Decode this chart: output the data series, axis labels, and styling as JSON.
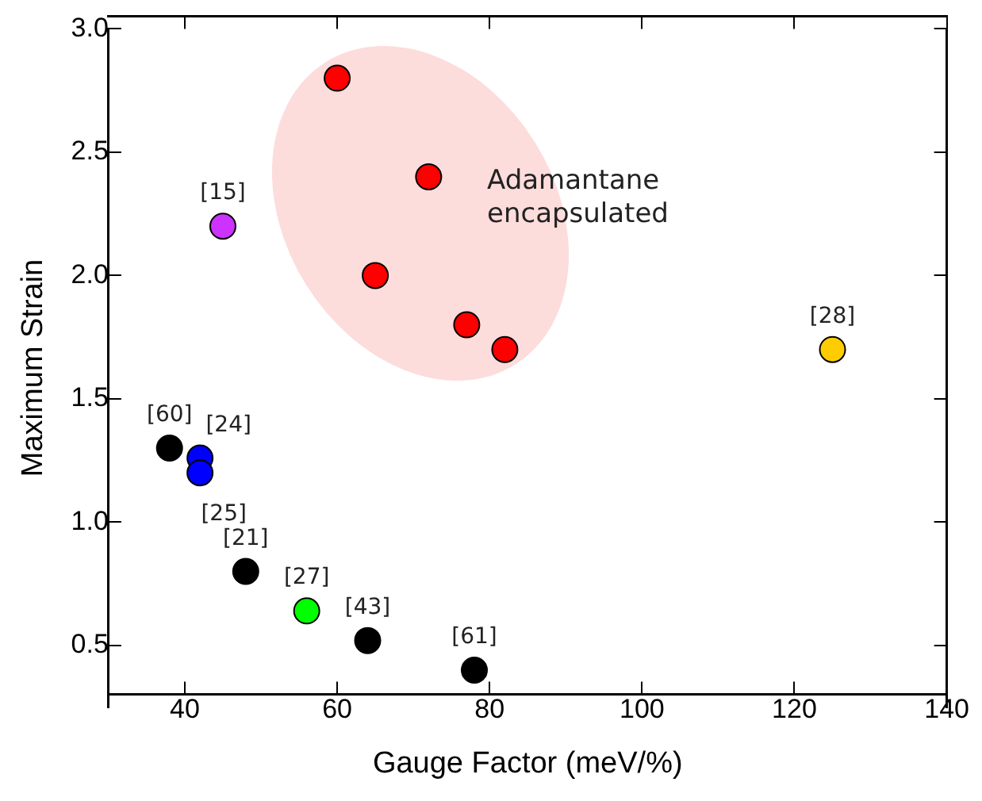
{
  "chart_data": {
    "type": "scatter",
    "xlabel": "Gauge Factor (meV/%)",
    "ylabel": "Maximum Strain",
    "xlim": [
      30,
      140
    ],
    "xticks": [
      40,
      60,
      80,
      100,
      120,
      140
    ],
    "ylim": [
      0.25,
      3.0
    ],
    "yticks": [
      0.5,
      {
        "value": 1,
        "label": "1.0"
      },
      1.5,
      {
        "value": 2,
        "label": "2.0"
      },
      2.5,
      {
        "value": 3,
        "label": "3.0"
      }
    ],
    "grid": false,
    "legend": false,
    "marker": "circle",
    "series": [
      {
        "x": [
          60,
          72,
          65,
          77,
          82,
          45,
          125,
          38,
          42,
          42,
          48,
          56,
          64,
          78
        ],
        "values": [
          2.8,
          2.4,
          2.0,
          1.8,
          1.7,
          2.2,
          1.7,
          1.3,
          1.26,
          1.2,
          0.8,
          0.64,
          0.52,
          0.4
        ],
        "colors": [
          "#ff0000",
          "#ff0000",
          "#ff0000",
          "#ff0000",
          "#ff0000",
          "#cc33ff",
          "#ffcc00",
          "#000000",
          "#0000ff",
          "#0000ff",
          "#000000",
          "#00ff00",
          "#000000",
          "#000000"
        ]
      }
    ],
    "annotations": [
      {
        "text": "[15]",
        "x": 45,
        "y": 2.2
      },
      {
        "text": "[28]",
        "x": 125,
        "y": 1.7
      },
      {
        "text": "[60]",
        "x": 38,
        "y": 1.3
      },
      {
        "text": "[24]",
        "x": 42,
        "y": 1.26
      },
      {
        "text": "[25]",
        "x": 42,
        "y": 1.2
      },
      {
        "text": "[21]",
        "x": 48,
        "y": 0.8
      },
      {
        "text": "[27]",
        "x": 56,
        "y": 0.64
      },
      {
        "text": "[43]",
        "x": 64,
        "y": 0.52
      },
      {
        "text": "[61]",
        "x": 78,
        "y": 0.4
      },
      "Adamantane\nencapsulated"
    ]
  }
}
